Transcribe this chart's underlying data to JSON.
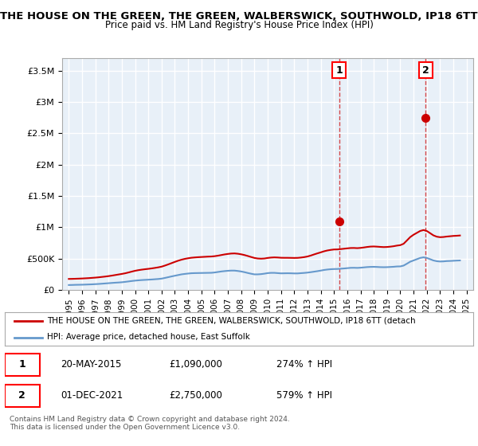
{
  "title": "THE HOUSE ON THE GREEN, THE GREEN, WALBERSWICK, SOUTHWOLD, IP18 6TT",
  "subtitle": "Price paid vs. HM Land Registry's House Price Index (HPI)",
  "title_fontsize": 10.5,
  "subtitle_fontsize": 9.5,
  "background_color": "#ffffff",
  "plot_bg_color": "#e8f0f8",
  "grid_color": "#ffffff",
  "ylim": [
    0,
    3700000
  ],
  "yticks": [
    0,
    500000,
    1000000,
    1500000,
    2000000,
    2500000,
    3000000,
    3500000
  ],
  "ytick_labels": [
    "£0",
    "£500K",
    "£1M",
    "£1.5M",
    "£2M",
    "£2.5M",
    "£3M",
    "£3.5M"
  ],
  "xlim_start": 1994.5,
  "xlim_end": 2025.5,
  "xticks": [
    1995,
    1996,
    1997,
    1998,
    1999,
    2000,
    2001,
    2002,
    2003,
    2004,
    2005,
    2006,
    2007,
    2008,
    2009,
    2010,
    2011,
    2012,
    2013,
    2014,
    2015,
    2016,
    2017,
    2018,
    2019,
    2020,
    2021,
    2022,
    2023,
    2024,
    2025
  ],
  "hpi_color": "#6699cc",
  "price_color": "#cc0000",
  "dashed_line_color": "#cc0000",
  "sale1_x": 2015.38,
  "sale1_y": 1090000,
  "sale2_x": 2021.92,
  "sale2_y": 2750000,
  "annotation1_label": "1",
  "annotation2_label": "2",
  "legend_label1": "THE HOUSE ON THE GREEN, THE GREEN, WALBERSWICK, SOUTHWOLD, IP18 6TT (detach",
  "legend_label2": "HPI: Average price, detached house, East Suffolk",
  "table_row1": [
    "1",
    "20-MAY-2015",
    "£1,090,000",
    "274% ↑ HPI"
  ],
  "table_row2": [
    "2",
    "01-DEC-2021",
    "£2,750,000",
    "579% ↑ HPI"
  ],
  "footer_text": "Contains HM Land Registry data © Crown copyright and database right 2024.\nThis data is licensed under the Open Government Licence v3.0.",
  "hpi_data_x": [
    1995.0,
    1995.25,
    1995.5,
    1995.75,
    1996.0,
    1996.25,
    1996.5,
    1996.75,
    1997.0,
    1997.25,
    1997.5,
    1997.75,
    1998.0,
    1998.25,
    1998.5,
    1998.75,
    1999.0,
    1999.25,
    1999.5,
    1999.75,
    2000.0,
    2000.25,
    2000.5,
    2000.75,
    2001.0,
    2001.25,
    2001.5,
    2001.75,
    2002.0,
    2002.25,
    2002.5,
    2002.75,
    2003.0,
    2003.25,
    2003.5,
    2003.75,
    2004.0,
    2004.25,
    2004.5,
    2004.75,
    2005.0,
    2005.25,
    2005.5,
    2005.75,
    2006.0,
    2006.25,
    2006.5,
    2006.75,
    2007.0,
    2007.25,
    2007.5,
    2007.75,
    2008.0,
    2008.25,
    2008.5,
    2008.75,
    2009.0,
    2009.25,
    2009.5,
    2009.75,
    2010.0,
    2010.25,
    2010.5,
    2010.75,
    2011.0,
    2011.25,
    2011.5,
    2011.75,
    2012.0,
    2012.25,
    2012.5,
    2012.75,
    2013.0,
    2013.25,
    2013.5,
    2013.75,
    2014.0,
    2014.25,
    2014.5,
    2014.75,
    2015.0,
    2015.25,
    2015.5,
    2015.75,
    2016.0,
    2016.25,
    2016.5,
    2016.75,
    2017.0,
    2017.25,
    2017.5,
    2017.75,
    2018.0,
    2018.25,
    2018.5,
    2018.75,
    2019.0,
    2019.25,
    2019.5,
    2019.75,
    2020.0,
    2020.25,
    2020.5,
    2020.75,
    2021.0,
    2021.25,
    2021.5,
    2021.75,
    2022.0,
    2022.25,
    2022.5,
    2022.75,
    2023.0,
    2023.25,
    2023.5,
    2023.75,
    2024.0,
    2024.25,
    2024.5
  ],
  "hpi_data_y": [
    78000,
    79000,
    81000,
    82000,
    83000,
    85000,
    87000,
    89000,
    92000,
    95000,
    99000,
    103000,
    107000,
    111000,
    115000,
    118000,
    122000,
    128000,
    135000,
    142000,
    148000,
    153000,
    157000,
    160000,
    163000,
    166000,
    170000,
    174000,
    180000,
    191000,
    203000,
    215000,
    226000,
    237000,
    248000,
    255000,
    261000,
    266000,
    268000,
    269000,
    270000,
    271000,
    272000,
    273000,
    278000,
    286000,
    294000,
    300000,
    305000,
    308000,
    308000,
    302000,
    294000,
    283000,
    270000,
    258000,
    248000,
    248000,
    252000,
    259000,
    268000,
    272000,
    272000,
    268000,
    264000,
    265000,
    266000,
    265000,
    263000,
    263000,
    267000,
    271000,
    276000,
    283000,
    291000,
    299000,
    308000,
    318000,
    325000,
    330000,
    333000,
    334000,
    338000,
    342000,
    347000,
    352000,
    353000,
    351000,
    354000,
    359000,
    364000,
    367000,
    368000,
    366000,
    363000,
    362000,
    363000,
    366000,
    369000,
    374000,
    375000,
    388000,
    418000,
    450000,
    470000,
    490000,
    510000,
    520000,
    510000,
    490000,
    470000,
    458000,
    453000,
    455000,
    460000,
    462000,
    465000,
    468000,
    470000
  ],
  "price_data_x": [
    1995.0,
    1995.25,
    1995.5,
    1995.75,
    1996.0,
    1996.25,
    1996.5,
    1996.75,
    1997.0,
    1997.25,
    1997.5,
    1997.75,
    1998.0,
    1998.25,
    1998.5,
    1998.75,
    1999.0,
    1999.25,
    1999.5,
    1999.75,
    2000.0,
    2000.25,
    2000.5,
    2000.75,
    2001.0,
    2001.25,
    2001.5,
    2001.75,
    2002.0,
    2002.25,
    2002.5,
    2002.75,
    2003.0,
    2003.25,
    2003.5,
    2003.75,
    2004.0,
    2004.25,
    2004.5,
    2004.75,
    2005.0,
    2005.25,
    2005.5,
    2005.75,
    2006.0,
    2006.25,
    2006.5,
    2006.75,
    2007.0,
    2007.25,
    2007.5,
    2007.75,
    2008.0,
    2008.25,
    2008.5,
    2008.75,
    2009.0,
    2009.25,
    2009.5,
    2009.75,
    2010.0,
    2010.25,
    2010.5,
    2010.75,
    2011.0,
    2011.25,
    2011.5,
    2011.75,
    2012.0,
    2012.25,
    2012.5,
    2012.75,
    2013.0,
    2013.25,
    2013.5,
    2013.75,
    2014.0,
    2014.25,
    2014.5,
    2014.75,
    2015.0,
    2015.25,
    2015.5,
    2015.75,
    2016.0,
    2016.25,
    2016.5,
    2016.75,
    2017.0,
    2017.25,
    2017.5,
    2017.75,
    2018.0,
    2018.25,
    2018.5,
    2018.75,
    2019.0,
    2019.25,
    2019.5,
    2019.75,
    2020.0,
    2020.25,
    2020.5,
    2020.75,
    2021.0,
    2021.25,
    2021.5,
    2021.75,
    2022.0,
    2022.25,
    2022.5,
    2022.75,
    2023.0,
    2023.25,
    2023.5,
    2023.75,
    2024.0,
    2024.25,
    2024.5
  ],
  "price_data_y": [
    175000,
    176000,
    178000,
    180000,
    182000,
    185000,
    188000,
    192000,
    196000,
    201000,
    207000,
    213000,
    220000,
    228000,
    237000,
    246000,
    255000,
    265000,
    278000,
    292000,
    305000,
    315000,
    323000,
    330000,
    336000,
    343000,
    351000,
    360000,
    371000,
    388000,
    407000,
    427000,
    447000,
    466000,
    482000,
    495000,
    505000,
    513000,
    518000,
    522000,
    525000,
    528000,
    531000,
    533000,
    538000,
    546000,
    556000,
    566000,
    574000,
    580000,
    582000,
    577000,
    568000,
    556000,
    541000,
    525000,
    510000,
    501000,
    498000,
    501000,
    510000,
    516000,
    519000,
    517000,
    513000,
    512000,
    512000,
    511000,
    510000,
    511000,
    516000,
    523000,
    533000,
    548000,
    566000,
    583000,
    599000,
    616000,
    629000,
    638000,
    645000,
    646000,
    651000,
    657000,
    663000,
    668000,
    669000,
    666000,
    670000,
    677000,
    685000,
    691000,
    693000,
    690000,
    686000,
    683000,
    685000,
    690000,
    697000,
    707000,
    714000,
    736000,
    789000,
    843000,
    880000,
    910000,
    940000,
    955000,
    940000,
    905000,
    870000,
    849000,
    841000,
    844000,
    851000,
    856000,
    861000,
    864000,
    868000
  ]
}
